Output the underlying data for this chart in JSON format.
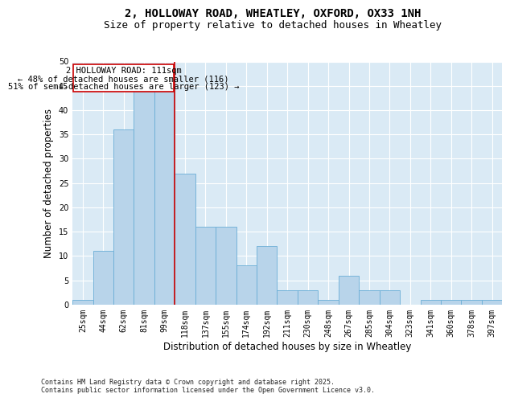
{
  "title_line1": "2, HOLLOWAY ROAD, WHEATLEY, OXFORD, OX33 1NH",
  "title_line2": "Size of property relative to detached houses in Wheatley",
  "xlabel": "Distribution of detached houses by size in Wheatley",
  "ylabel": "Number of detached properties",
  "footer": "Contains HM Land Registry data © Crown copyright and database right 2025.\nContains public sector information licensed under the Open Government Licence v3.0.",
  "bar_labels": [
    "25sqm",
    "44sqm",
    "62sqm",
    "81sqm",
    "99sqm",
    "118sqm",
    "137sqm",
    "155sqm",
    "174sqm",
    "192sqm",
    "211sqm",
    "230sqm",
    "248sqm",
    "267sqm",
    "285sqm",
    "304sqm",
    "323sqm",
    "341sqm",
    "360sqm",
    "378sqm",
    "397sqm"
  ],
  "bar_values": [
    1,
    11,
    36,
    46,
    46,
    27,
    16,
    16,
    8,
    12,
    3,
    3,
    1,
    6,
    3,
    3,
    0,
    1,
    1,
    1,
    1
  ],
  "bar_color": "#b8d4ea",
  "bar_edgecolor": "#6aaed6",
  "bg_color": "#daeaf5",
  "grid_color": "#ffffff",
  "vline_x": 5,
  "vline_color": "#cc0000",
  "annotation_text_line1": "2 HOLLOWAY ROAD: 111sqm",
  "annotation_text_line2": "← 48% of detached houses are smaller (116)",
  "annotation_text_line3": "51% of semi-detached houses are larger (123) →",
  "annotation_box_color": "#cc0000",
  "ylim": [
    0,
    50
  ],
  "yticks": [
    0,
    5,
    10,
    15,
    20,
    25,
    30,
    35,
    40,
    45,
    50
  ],
  "title_fontsize": 10,
  "subtitle_fontsize": 9,
  "axis_label_fontsize": 8.5,
  "tick_fontsize": 7,
  "annotation_fontsize": 7.5,
  "footer_fontsize": 6
}
